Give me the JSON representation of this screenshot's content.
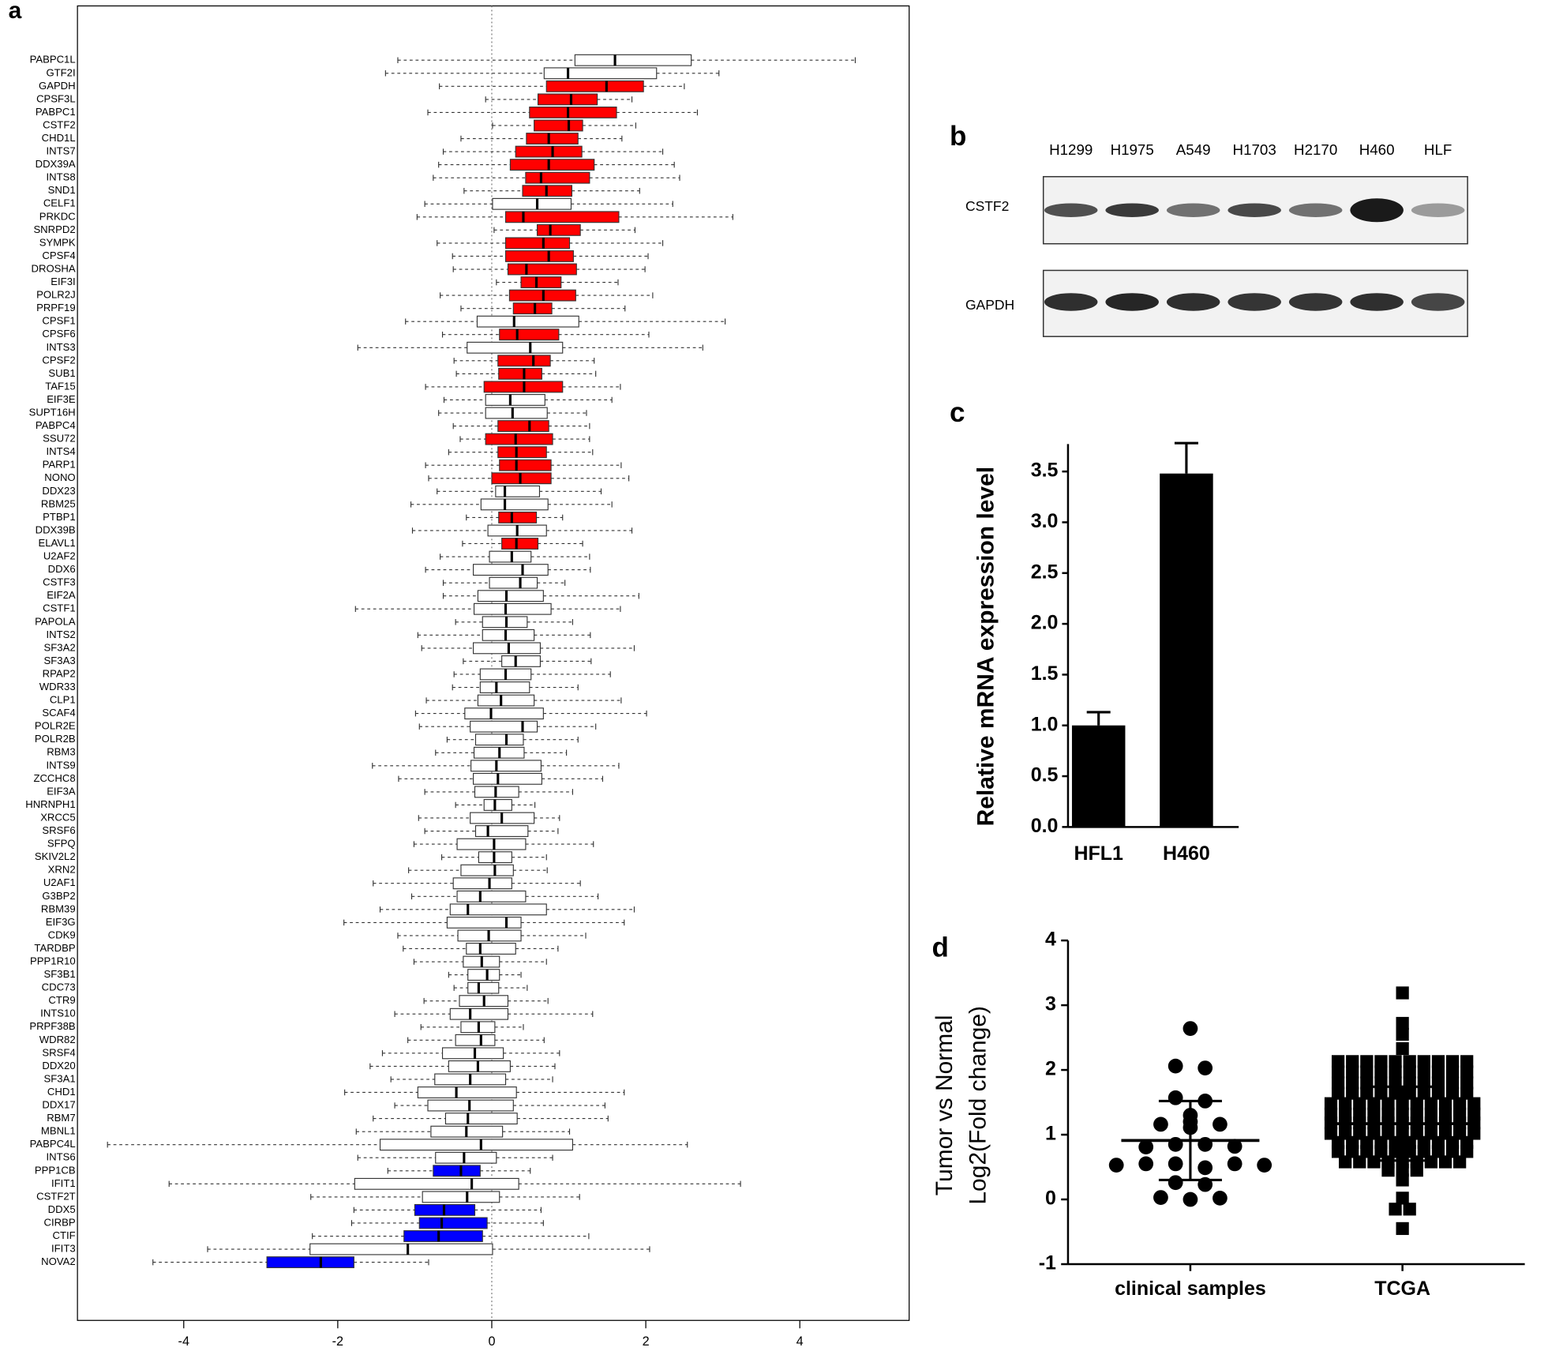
{
  "chart_data": [
    {
      "type": "boxplot",
      "panel": "a",
      "categories": [
        "PABPC1L",
        "GTF2I",
        "GAPDH",
        "CPSF3L",
        "PABPC1",
        "CSTF2",
        "CHD1L",
        "INTS7",
        "DDX39A",
        "INTS8",
        "SND1",
        "CELF1",
        "PRKDC",
        "SNRPD2",
        "SYMPK",
        "CPSF4",
        "DROSHA",
        "EIF3I",
        "POLR2J",
        "PRPF19",
        "CPSF1",
        "CPSF6",
        "INTS3",
        "CPSF2",
        "SUB1",
        "TAF15",
        "EIF3E",
        "SUPT16H",
        "PABPC4",
        "SSU72",
        "INTS4",
        "PARP1",
        "NONO",
        "DDX23",
        "RBM25",
        "PTBP1",
        "DDX39B",
        "ELAVL1",
        "U2AF2",
        "DDX6",
        "CSTF3",
        "EIF2A",
        "CSTF1",
        "PAPOLA",
        "INTS2",
        "SF3A2",
        "SF3A3",
        "RPAP2",
        "WDR33",
        "CLP1",
        "SCAF4",
        "POLR2E",
        "POLR2B",
        "RBM3",
        "INTS9",
        "ZCCHC8",
        "EIF3A",
        "HNRNPH1",
        "XRCC5",
        "SRSF6",
        "SFPQ",
        "SKIV2L2",
        "XRN2",
        "U2AF1",
        "G3BP2",
        "RBM39",
        "EIF3G",
        "CDK9",
        "TARDBP",
        "PPP1R10",
        "SF3B1",
        "CDC73",
        "CTR9",
        "INTS10",
        "PRPF38B",
        "WDR82",
        "SRSF4",
        "DDX20",
        "SF3A1",
        "CHD1",
        "DDX17",
        "RBM7",
        "MBNL1",
        "PABPC4L",
        "INTS6",
        "PPP1CB",
        "IFIT1",
        "CSTF2T",
        "DDX5",
        "CIRBP",
        "CTIF",
        "IFIT3",
        "NOVA2"
      ],
      "whislo": [
        -1.22,
        -1.38,
        -0.68,
        -0.08,
        -0.83,
        0.01,
        -0.4,
        -0.63,
        -0.69,
        -0.76,
        -0.36,
        -0.87,
        -0.97,
        0.03,
        -0.71,
        -0.51,
        -0.5,
        0.06,
        -0.67,
        -0.4,
        -1.12,
        -0.64,
        -1.74,
        -0.49,
        -0.46,
        -0.86,
        -0.62,
        -0.69,
        -0.5,
        -0.41,
        -0.56,
        -0.86,
        -0.82,
        -0.71,
        -1.05,
        -0.33,
        -1.03,
        -0.38,
        -0.67,
        -0.86,
        -0.63,
        -0.63,
        -1.77,
        -0.47,
        -0.96,
        -0.91,
        -0.37,
        -0.49,
        -0.51,
        -0.85,
        -0.99,
        -0.94,
        -0.58,
        -0.73,
        -1.55,
        -1.21,
        -0.87,
        -0.47,
        -0.95,
        -0.87,
        -1.01,
        -0.65,
        -1.08,
        -1.54,
        -1.04,
        -1.45,
        -1.92,
        -1.22,
        -1.15,
        -1.01,
        -0.56,
        -0.49,
        -0.88,
        -1.26,
        -0.92,
        -1.09,
        -1.42,
        -1.58,
        -1.31,
        -1.91,
        -1.26,
        -1.54,
        -1.76,
        -4.99,
        -1.74,
        -1.35,
        -4.19,
        -2.35,
        -1.79,
        -1.82,
        -2.33,
        -3.69,
        -4.4
      ],
      "q1": [
        1.08,
        0.68,
        0.71,
        0.6,
        0.49,
        0.55,
        0.45,
        0.31,
        0.24,
        0.44,
        0.4,
        0.01,
        0.18,
        0.59,
        0.18,
        0.18,
        0.21,
        0.38,
        0.23,
        0.28,
        -0.19,
        0.1,
        -0.32,
        0.08,
        0.09,
        -0.1,
        -0.08,
        -0.08,
        0.08,
        -0.08,
        0.08,
        0.1,
        0.0,
        0.05,
        -0.14,
        0.09,
        -0.05,
        0.13,
        -0.03,
        -0.24,
        -0.03,
        -0.18,
        -0.23,
        -0.12,
        -0.12,
        -0.24,
        0.13,
        -0.15,
        -0.15,
        -0.18,
        -0.35,
        -0.28,
        -0.21,
        -0.23,
        -0.27,
        -0.24,
        -0.22,
        -0.1,
        -0.28,
        -0.21,
        -0.45,
        -0.17,
        -0.4,
        -0.5,
        -0.45,
        -0.54,
        -0.58,
        -0.44,
        -0.33,
        -0.37,
        -0.31,
        -0.31,
        -0.42,
        -0.54,
        -0.4,
        -0.47,
        -0.64,
        -0.56,
        -0.74,
        -0.96,
        -0.83,
        -0.6,
        -0.79,
        -1.45,
        -0.73,
        -0.76,
        -1.78,
        -0.9,
        -1.0,
        -0.94,
        -1.14,
        -2.36,
        -2.92
      ],
      "med": [
        1.6,
        0.99,
        1.49,
        1.03,
        0.99,
        1.0,
        0.74,
        0.79,
        0.74,
        0.64,
        0.71,
        0.59,
        0.41,
        0.76,
        0.67,
        0.74,
        0.45,
        0.58,
        0.67,
        0.56,
        0.29,
        0.33,
        0.5,
        0.54,
        0.42,
        0.42,
        0.24,
        0.27,
        0.49,
        0.31,
        0.32,
        0.32,
        0.37,
        0.17,
        0.17,
        0.26,
        0.33,
        0.32,
        0.26,
        0.4,
        0.37,
        0.19,
        0.18,
        0.19,
        0.18,
        0.22,
        0.31,
        0.18,
        0.06,
        0.12,
        -0.01,
        0.4,
        0.19,
        0.1,
        0.06,
        0.08,
        0.05,
        0.04,
        0.13,
        -0.05,
        0.03,
        0.03,
        0.04,
        -0.03,
        -0.15,
        -0.31,
        0.19,
        -0.04,
        -0.15,
        -0.13,
        -0.06,
        -0.17,
        -0.1,
        -0.28,
        -0.17,
        -0.14,
        -0.22,
        -0.18,
        -0.28,
        -0.46,
        -0.29,
        -0.31,
        -0.33,
        -0.14,
        -0.36,
        -0.4,
        -0.26,
        -0.32,
        -0.62,
        -0.65,
        -0.69,
        -1.09,
        -2.22
      ],
      "q3": [
        2.59,
        2.14,
        1.97,
        1.37,
        1.62,
        1.18,
        1.12,
        1.17,
        1.33,
        1.27,
        1.04,
        1.03,
        1.65,
        1.15,
        1.01,
        1.06,
        1.1,
        0.9,
        1.09,
        0.78,
        1.13,
        0.87,
        0.92,
        0.76,
        0.65,
        0.92,
        0.69,
        0.72,
        0.74,
        0.79,
        0.71,
        0.77,
        0.77,
        0.62,
        0.73,
        0.58,
        0.71,
        0.6,
        0.51,
        0.73,
        0.59,
        0.67,
        0.77,
        0.46,
        0.55,
        0.63,
        0.63,
        0.51,
        0.49,
        0.55,
        0.67,
        0.59,
        0.41,
        0.42,
        0.64,
        0.65,
        0.35,
        0.26,
        0.55,
        0.47,
        0.44,
        0.26,
        0.28,
        0.26,
        0.44,
        0.71,
        0.38,
        0.38,
        0.31,
        0.1,
        0.1,
        0.09,
        0.21,
        0.21,
        0.04,
        0.04,
        0.15,
        0.24,
        0.18,
        0.32,
        0.28,
        0.33,
        0.14,
        1.05,
        0.06,
        -0.15,
        0.35,
        0.1,
        -0.22,
        -0.06,
        -0.12,
        0.01,
        -1.79
      ],
      "whishi": [
        4.72,
        2.95,
        2.5,
        1.82,
        2.67,
        1.87,
        1.69,
        2.22,
        2.37,
        2.44,
        1.92,
        2.35,
        3.13,
        1.86,
        2.22,
        2.03,
        1.99,
        1.64,
        2.09,
        1.73,
        3.03,
        2.04,
        2.74,
        1.33,
        1.35,
        1.67,
        1.56,
        1.23,
        1.27,
        1.27,
        1.31,
        1.68,
        1.78,
        1.42,
        1.56,
        0.92,
        1.82,
        1.18,
        1.27,
        1.28,
        0.95,
        1.91,
        1.67,
        1.05,
        1.28,
        1.85,
        1.29,
        1.54,
        1.12,
        1.68,
        2.01,
        1.35,
        1.12,
        0.97,
        1.65,
        1.44,
        1.05,
        0.56,
        0.88,
        0.86,
        1.32,
        0.71,
        0.72,
        1.15,
        1.38,
        1.85,
        1.72,
        1.22,
        0.86,
        0.71,
        0.38,
        0.46,
        0.73,
        1.31,
        0.41,
        0.68,
        0.88,
        0.82,
        0.79,
        1.72,
        1.47,
        1.51,
        1.01,
        2.54,
        0.79,
        0.5,
        3.23,
        1.14,
        0.64,
        0.67,
        1.26,
        2.05,
        -0.82
      ],
      "colors": [
        "#ffffff",
        "#ffffff",
        "#ff0000",
        "#ff0000",
        "#ff0000",
        "#ff0000",
        "#ff0000",
        "#ff0000",
        "#ff0000",
        "#ff0000",
        "#ff0000",
        "#ffffff",
        "#ff0000",
        "#ff0000",
        "#ff0000",
        "#ff0000",
        "#ff0000",
        "#ff0000",
        "#ff0000",
        "#ff0000",
        "#ffffff",
        "#ff0000",
        "#ffffff",
        "#ff0000",
        "#ff0000",
        "#ff0000",
        "#ffffff",
        "#ffffff",
        "#ff0000",
        "#ff0000",
        "#ff0000",
        "#ff0000",
        "#ff0000",
        "#ffffff",
        "#ffffff",
        "#ff0000",
        "#ffffff",
        "#ff0000",
        "#ffffff",
        "#ffffff",
        "#ffffff",
        "#ffffff",
        "#ffffff",
        "#ffffff",
        "#ffffff",
        "#ffffff",
        "#ffffff",
        "#ffffff",
        "#ffffff",
        "#ffffff",
        "#ffffff",
        "#ffffff",
        "#ffffff",
        "#ffffff",
        "#ffffff",
        "#ffffff",
        "#ffffff",
        "#ffffff",
        "#ffffff",
        "#ffffff",
        "#ffffff",
        "#ffffff",
        "#ffffff",
        "#ffffff",
        "#ffffff",
        "#ffffff",
        "#ffffff",
        "#ffffff",
        "#ffffff",
        "#ffffff",
        "#ffffff",
        "#ffffff",
        "#ffffff",
        "#ffffff",
        "#ffffff",
        "#ffffff",
        "#ffffff",
        "#ffffff",
        "#ffffff",
        "#ffffff",
        "#ffffff",
        "#ffffff",
        "#ffffff",
        "#ffffff",
        "#ffffff",
        "#0000ff",
        "#ffffff",
        "#ffffff",
        "#0000ff",
        "#0000ff",
        "#0000ff",
        "#ffffff",
        "#0000ff"
      ],
      "xlim": [
        -5.38,
        5.42
      ],
      "xticks": [
        -4,
        -2,
        0,
        2,
        4
      ],
      "refline": 0
    },
    {
      "type": "blot",
      "panel": "b",
      "lanes": [
        "H1299",
        "H1975",
        "A549",
        "H1703",
        "H2170",
        "H460",
        "HLF"
      ],
      "rows": [
        "CSTF2",
        "GAPDH"
      ]
    },
    {
      "type": "bar",
      "panel": "c",
      "ylabel": "Relative mRNA  expression level",
      "categories": [
        "HFL1",
        "H460"
      ],
      "values": [
        1.0,
        3.48
      ],
      "errors": [
        0.13,
        0.3
      ],
      "color": "#000000",
      "ylim": [
        0,
        3.77
      ],
      "yticks": [
        {
          "value": 0,
          "label": "0.0"
        },
        0.5,
        {
          "value": 1,
          "label": "1.0"
        },
        1.5,
        {
          "value": 2,
          "label": "2.0"
        },
        2.5,
        {
          "value": 3,
          "label": "3.0"
        },
        3.5
      ]
    },
    {
      "type": "scatter",
      "panel": "d",
      "ylabel": [
        "Tumor vs Normal",
        "Log2(Fold change)"
      ],
      "categories": [
        "clinical samples",
        "TCGA"
      ],
      "groups": [
        {
          "marker": "circle",
          "color": "#000000",
          "mean": 0.91,
          "sd": 0.61,
          "values": [
            2.64,
            2.06,
            2.03,
            1.57,
            1.52,
            1.16,
            1.11,
            1.3,
            1.2,
            1.16,
            0.81,
            0.85,
            0.85,
            0.82,
            0.53,
            0.55,
            0.55,
            0.49,
            0.55,
            0.53,
            0.26,
            0.23,
            0.03,
            0.0,
            0.02
          ]
        },
        {
          "marker": "square",
          "color": "#000000",
          "mean": 1.17,
          "sd": 0.57,
          "values": [
            3.19,
            2.72,
            2.55,
            2.33,
            2.13,
            2.13,
            2.13,
            2.13,
            2.13,
            2.13,
            2.13,
            2.13,
            2.13,
            2.13,
            1.97,
            1.97,
            1.97,
            1.97,
            1.97,
            1.97,
            1.97,
            1.97,
            1.97,
            1.97,
            1.8,
            1.8,
            1.8,
            1.8,
            1.8,
            1.8,
            1.8,
            1.8,
            1.8,
            1.8,
            1.64,
            1.64,
            1.64,
            1.64,
            1.64,
            1.64,
            1.64,
            1.64,
            1.64,
            1.64,
            1.48,
            1.48,
            1.48,
            1.48,
            1.48,
            1.48,
            1.48,
            1.48,
            1.48,
            1.48,
            1.48,
            1.32,
            1.32,
            1.32,
            1.32,
            1.32,
            1.32,
            1.32,
            1.32,
            1.32,
            1.32,
            1.32,
            1.18,
            1.18,
            1.18,
            1.18,
            1.18,
            1.18,
            1.18,
            1.18,
            1.18,
            1.18,
            1.18,
            1.02,
            1.02,
            1.02,
            1.02,
            1.02,
            1.02,
            1.02,
            1.02,
            1.02,
            1.02,
            1.02,
            0.88,
            0.88,
            0.88,
            0.88,
            0.88,
            0.88,
            0.88,
            0.88,
            0.88,
            0.88,
            0.74,
            0.74,
            0.74,
            0.74,
            0.74,
            0.74,
            0.74,
            0.74,
            0.74,
            0.74,
            0.58,
            0.58,
            0.58,
            0.58,
            0.58,
            0.58,
            0.58,
            0.58,
            0.58,
            0.45,
            0.45,
            0.45,
            0.3,
            0.02,
            -0.15,
            -0.15,
            -0.45
          ]
        }
      ],
      "ylim": [
        -1,
        4
      ],
      "yticks": [
        -1,
        0,
        1,
        2,
        3,
        4
      ]
    }
  ]
}
